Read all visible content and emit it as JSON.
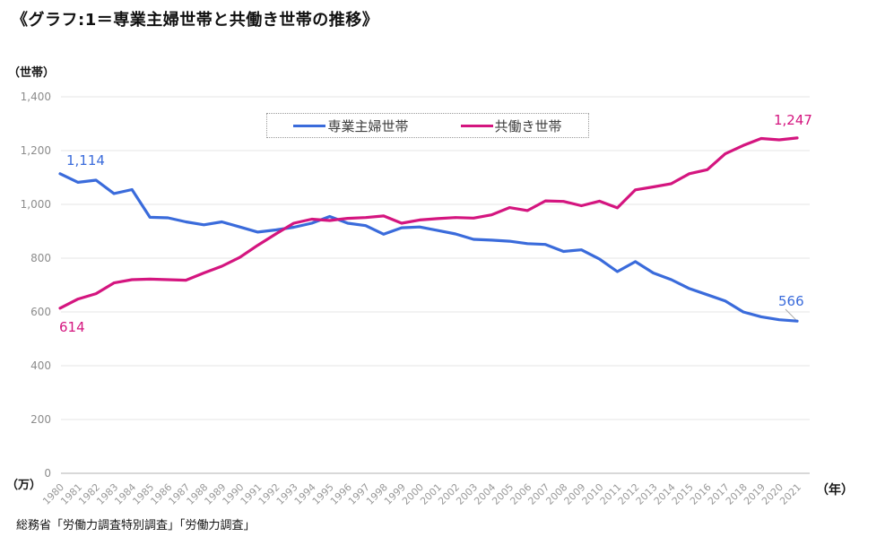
{
  "title": "《グラフ:1＝専業主婦世帯と共働き世帯の推移》",
  "source": "総務省「労働力調査特別調査」「労働力調査」",
  "axis_unit_labels": {
    "y_top": "（世帯）",
    "y_bottom": "（万）",
    "x_right": "（年）"
  },
  "legend": {
    "items": [
      {
        "label": "専業主婦世帯",
        "color": "#3a6bdb"
      },
      {
        "label": "共働き世帯",
        "color": "#d4157f"
      }
    ]
  },
  "annotations": [
    {
      "text": "1,114",
      "series": "専業主婦世帯",
      "year": 1980,
      "color": "#3a6bdb"
    },
    {
      "text": "614",
      "series": "共働き世帯",
      "year": 1980,
      "color": "#d4157f"
    },
    {
      "text": "566",
      "series": "専業主婦世帯",
      "year": 2021,
      "color": "#3a6bdb"
    },
    {
      "text": "1,247",
      "series": "共働き世帯",
      "year": 2021,
      "color": "#d4157f"
    }
  ],
  "colors": {
    "grid": "#e4e4e4",
    "axis": "#b0b0b0",
    "tick_text": "#8c8c8c",
    "leader_line": "#aaaaaa"
  },
  "chart_data": {
    "type": "line",
    "title": "専業主婦世帯と共働き世帯の推移",
    "xlabel": "年",
    "ylabel": "世帯（万）",
    "ylim": [
      0,
      1400
    ],
    "yticks": [
      0,
      200,
      400,
      600,
      800,
      1000,
      1200,
      1400
    ],
    "grid": "horizontal",
    "legend_position": "top-center",
    "x": [
      1980,
      1981,
      1982,
      1983,
      1984,
      1985,
      1986,
      1987,
      1988,
      1989,
      1990,
      1991,
      1992,
      1993,
      1994,
      1995,
      1996,
      1997,
      1998,
      1999,
      2000,
      2001,
      2002,
      2003,
      2004,
      2005,
      2006,
      2007,
      2008,
      2009,
      2010,
      2011,
      2012,
      2013,
      2014,
      2015,
      2016,
      2017,
      2018,
      2019,
      2020,
      2021
    ],
    "series": [
      {
        "name": "専業主婦世帯",
        "color": "#3a6bdb",
        "values": [
          1114,
          1082,
          1090,
          1040,
          1055,
          952,
          950,
          935,
          924,
          935,
          916,
          897,
          905,
          915,
          930,
          955,
          930,
          921,
          889,
          913,
          916,
          903,
          890,
          870,
          867,
          863,
          854,
          851,
          825,
          831,
          797,
          750,
          787,
          745,
          720,
          687,
          664,
          641,
          600,
          582,
          571,
          566
        ]
      },
      {
        "name": "共働き世帯",
        "color": "#d4157f",
        "values": [
          614,
          648,
          668,
          708,
          720,
          722,
          720,
          718,
          745,
          770,
          803,
          848,
          890,
          930,
          945,
          940,
          948,
          951,
          957,
          930,
          942,
          947,
          951,
          949,
          961,
          988,
          977,
          1013,
          1011,
          995,
          1012,
          987,
          1054,
          1065,
          1077,
          1114,
          1129,
          1188,
          1219,
          1245,
          1240,
          1247
        ]
      }
    ]
  }
}
